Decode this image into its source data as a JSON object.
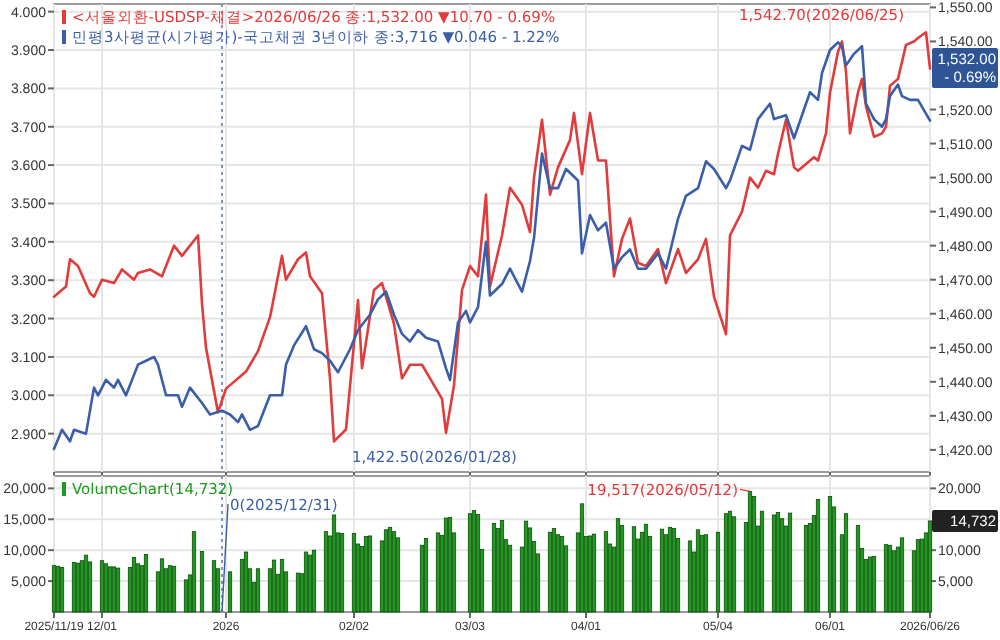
{
  "chart_data": [
    {
      "type": "line",
      "xlim": [
        "2025-11-19",
        "2026-06-26"
      ],
      "ylim": [
        2.8,
        4.02
      ],
      "y2lim": [
        1413.5,
        1551
      ],
      "xticks": [
        {
          "value": "2025-11-19",
          "label": null
        },
        {
          "value": "2025-12-01",
          "label": null
        },
        {
          "value": "2026-01-01",
          "label": null
        },
        {
          "value": "2026-02-02",
          "label": null
        },
        {
          "value": "2026-03-03",
          "label": null
        },
        {
          "value": "2026-04-01",
          "label": null
        },
        {
          "value": "2026-05-04",
          "label": null
        },
        {
          "value": "2026-06-01",
          "label": null
        },
        {
          "value": "2026-06-26",
          "label": null
        }
      ],
      "yticks": [
        {
          "value": 2.9,
          "label": "2.900"
        },
        {
          "value": 3.0,
          "label": "3.000"
        },
        {
          "value": 3.1,
          "label": "3.100"
        },
        {
          "value": 3.2,
          "label": "3.200"
        },
        {
          "value": 3.3,
          "label": "3.300"
        },
        {
          "value": 3.4,
          "label": "3.400"
        },
        {
          "value": 3.5,
          "label": "3.500"
        },
        {
          "value": 3.6,
          "label": "3.600"
        },
        {
          "value": 3.7,
          "label": "3.700"
        },
        {
          "value": 3.8,
          "label": "3.800"
        },
        {
          "value": 3.9,
          "label": "3.900"
        },
        {
          "value": 4.0,
          "label": "4.000"
        }
      ],
      "y2ticks": [
        {
          "value": 1420,
          "label": "1,420.00"
        },
        {
          "value": 1430,
          "label": "1,430.00"
        },
        {
          "value": 1440,
          "label": "1,440.00"
        },
        {
          "value": 1450,
          "label": "1,450.00"
        },
        {
          "value": 1460,
          "label": "1,460.00"
        },
        {
          "value": 1470,
          "label": "1,470.00"
        },
        {
          "value": 1480,
          "label": "1,480.00"
        },
        {
          "value": 1490,
          "label": "1,490.00"
        },
        {
          "value": 1500,
          "label": "1,500.00"
        },
        {
          "value": 1510,
          "label": "1,510.00"
        },
        {
          "value": 1520,
          "label": "1,520.00"
        },
        {
          "value": 1540,
          "label": "1,540.00"
        },
        {
          "value": 1550,
          "label": "1,550.00"
        }
      ],
      "tick_labels": "y",
      "grid": true,
      "legend": "top left",
      "ref_lines": [
        {
          "axis": "x",
          "value": "2025-12-31",
          "color": "#7d93c8",
          "line_style": "dotted"
        }
      ],
      "annotations": [
        "1,542.70(2026/06/25)",
        "1,422.50(2026/01/28)",
        "1,532.00\n- 0.69%"
      ],
      "series": [
        {
          "name": "<서울외환-USDSP-체결>2026/06/26 종:1,532.00 ▼10.70 - 0.69%",
          "color": "#e03c3c",
          "axis": "y2",
          "x": [
            "2025-11-19",
            "2025-11-22",
            "2025-11-23",
            "2025-11-25",
            "2025-11-28",
            "2025-11-29",
            "2025-12-01",
            "2025-12-04",
            "2025-12-06",
            "2025-12-09",
            "2025-12-10",
            "2025-12-13",
            "2025-12-16",
            "2025-12-19",
            "2025-12-21",
            "2025-12-25",
            "2025-12-26",
            "2025-12-27",
            "2025-12-30",
            "2026-01-01",
            "2026-01-06",
            "2026-01-09",
            "2026-01-12",
            "2026-01-15",
            "2026-01-16",
            "2026-01-19",
            "2026-01-21",
            "2026-01-22",
            "2026-01-25",
            "2026-01-27",
            "2026-01-28",
            "2026-01-31",
            "2026-02-03",
            "2026-02-04",
            "2026-02-07",
            "2026-02-09",
            "2026-02-12",
            "2026-02-14",
            "2026-02-16",
            "2026-02-19",
            "2026-02-21",
            "2026-02-24",
            "2026-02-25",
            "2026-02-27",
            "2026-03-01",
            "2026-03-03",
            "2026-03-05",
            "2026-03-07",
            "2026-03-08",
            "2026-03-11",
            "2026-03-13",
            "2026-03-16",
            "2026-03-18",
            "2026-03-19",
            "2026-03-21",
            "2026-03-23",
            "2026-03-25",
            "2026-03-28",
            "2026-03-29",
            "2026-03-31",
            "2026-04-02",
            "2026-04-04",
            "2026-04-06",
            "2026-04-08",
            "2026-04-10",
            "2026-04-12",
            "2026-04-14",
            "2026-04-16",
            "2026-04-19",
            "2026-04-21",
            "2026-04-24",
            "2026-04-26",
            "2026-04-29",
            "2026-05-01",
            "2026-05-03",
            "2026-05-06",
            "2026-05-07",
            "2026-05-10",
            "2026-05-12",
            "2026-05-14",
            "2026-05-16",
            "2026-05-18",
            "2026-05-19",
            "2026-05-21",
            "2026-05-23",
            "2026-05-24",
            "2026-05-26",
            "2026-05-28",
            "2026-05-29",
            "2026-05-31",
            "2026-06-01",
            "2026-06-03",
            "2026-06-04",
            "2026-06-05",
            "2026-06-06",
            "2026-06-08",
            "2026-06-09",
            "2026-06-10",
            "2026-06-12",
            "2026-06-14",
            "2026-06-15",
            "2026-06-16",
            "2026-06-18",
            "2026-06-20",
            "2026-06-22",
            "2026-06-23",
            "2026-06-25",
            "2026-06-26"
          ],
          "values": [
            1465,
            1468,
            1476,
            1474,
            1466,
            1465,
            1470,
            1469,
            1473,
            1470,
            1472,
            1473,
            1471,
            1480,
            1477,
            1483,
            1463,
            1450,
            1431,
            1438,
            1443,
            1449,
            1459,
            1477,
            1470,
            1476,
            1478,
            1471,
            1466,
            1441,
            1422.5,
            1426,
            1464,
            1444,
            1467,
            1469,
            1457,
            1441,
            1445,
            1445,
            1441,
            1435,
            1425,
            1439,
            1467,
            1474,
            1471,
            1495,
            1468,
            1483,
            1497,
            1492,
            1484,
            1500,
            1517,
            1495,
            1503,
            1511,
            1519,
            1501,
            1519,
            1505,
            1505,
            1471,
            1482,
            1488,
            1475,
            1474,
            1479,
            1469,
            1479,
            1472,
            1476,
            1482,
            1465,
            1454,
            1483,
            1490,
            1500,
            1497,
            1502,
            1501,
            1507,
            1517,
            1503,
            1502,
            1504,
            1506,
            1505,
            1513,
            1525,
            1537,
            1540,
            1531,
            1513,
            1525,
            1529,
            1521,
            1512,
            1513,
            1515,
            1527,
            1529,
            1539,
            1540,
            1541,
            1542.7,
            1532
          ]
        },
        {
          "name": "민평3사평균(시가평가)-국고채권 3년이하 종:3,716 ▼0.046 - 1.22%",
          "color": "#3b5ea8",
          "x": [
            "2025-11-19",
            "2025-11-21",
            "2025-11-23",
            "2025-11-24",
            "2025-11-27",
            "2025-11-29",
            "2025-11-30",
            "2025-12-02",
            "2025-12-04",
            "2025-12-05",
            "2025-12-07",
            "2025-12-10",
            "2025-12-12",
            "2025-12-14",
            "2025-12-15",
            "2025-12-17",
            "2025-12-20",
            "2025-12-21",
            "2025-12-23",
            "2025-12-26",
            "2025-12-28",
            "2025-12-31",
            "2026-01-02",
            "2026-01-04",
            "2026-01-05",
            "2026-01-07",
            "2026-01-09",
            "2026-01-12",
            "2026-01-15",
            "2026-01-16",
            "2026-01-18",
            "2026-01-21",
            "2026-01-23",
            "2026-01-25",
            "2026-01-27",
            "2026-01-29",
            "2026-02-01",
            "2026-02-03",
            "2026-02-06",
            "2026-02-08",
            "2026-02-10",
            "2026-02-12",
            "2026-02-14",
            "2026-02-16",
            "2026-02-18",
            "2026-02-20",
            "2026-02-23",
            "2026-02-25",
            "2026-02-26",
            "2026-02-28",
            "2026-03-02",
            "2026-03-03",
            "2026-03-05",
            "2026-03-07",
            "2026-03-08",
            "2026-03-11",
            "2026-03-13",
            "2026-03-14",
            "2026-03-16",
            "2026-03-18",
            "2026-03-19",
            "2026-03-21",
            "2026-03-23",
            "2026-03-25",
            "2026-03-27",
            "2026-03-30",
            "2026-03-31",
            "2026-04-02",
            "2026-04-04",
            "2026-04-06",
            "2026-04-08",
            "2026-04-10",
            "2026-04-12",
            "2026-04-14",
            "2026-04-16",
            "2026-04-19",
            "2026-04-21",
            "2026-04-24",
            "2026-04-26",
            "2026-04-29",
            "2026-05-01",
            "2026-05-03",
            "2026-05-06",
            "2026-05-07",
            "2026-05-10",
            "2026-05-12",
            "2026-05-14",
            "2026-05-17",
            "2026-05-18",
            "2026-05-21",
            "2026-05-23",
            "2026-05-24",
            "2026-05-27",
            "2026-05-29",
            "2026-05-30",
            "2026-06-01",
            "2026-06-03",
            "2026-06-04",
            "2026-06-05",
            "2026-06-07",
            "2026-06-09",
            "2026-06-10",
            "2026-06-12",
            "2026-06-14",
            "2026-06-15",
            "2026-06-16",
            "2026-06-18",
            "2026-06-19",
            "2026-06-21",
            "2026-06-23",
            "2026-06-26"
          ],
          "values": [
            2.86,
            2.91,
            2.88,
            2.91,
            2.9,
            3.02,
            3.0,
            3.04,
            3.02,
            3.04,
            3.0,
            3.08,
            3.09,
            3.1,
            3.08,
            3.0,
            3.0,
            2.97,
            3.02,
            2.98,
            2.95,
            2.96,
            2.95,
            2.93,
            2.95,
            2.91,
            2.92,
            3.0,
            3.0,
            3.08,
            3.13,
            3.18,
            3.12,
            3.11,
            3.09,
            3.06,
            3.12,
            3.17,
            3.21,
            3.25,
            3.27,
            3.21,
            3.16,
            3.14,
            3.17,
            3.15,
            3.14,
            3.07,
            3.04,
            3.19,
            3.22,
            3.19,
            3.23,
            3.4,
            3.26,
            3.29,
            3.33,
            3.31,
            3.27,
            3.35,
            3.41,
            3.63,
            3.54,
            3.54,
            3.59,
            3.56,
            3.37,
            3.47,
            3.43,
            3.45,
            3.33,
            3.36,
            3.38,
            3.33,
            3.33,
            3.37,
            3.33,
            3.46,
            3.52,
            3.54,
            3.61,
            3.59,
            3.54,
            3.56,
            3.65,
            3.64,
            3.72,
            3.76,
            3.72,
            3.73,
            3.67,
            3.7,
            3.79,
            3.77,
            3.84,
            3.9,
            3.92,
            3.91,
            3.86,
            3.89,
            3.91,
            3.76,
            3.72,
            3.7,
            3.72,
            3.78,
            3.81,
            3.78,
            3.77,
            3.77,
            3.716
          ]
        }
      ]
    },
    {
      "type": "bar",
      "xlim": [
        "2025-11-19",
        "2026-06-26"
      ],
      "ylim": [
        0,
        22000
      ],
      "y2lim": [
        0,
        22000
      ],
      "xticks": [
        {
          "value": "2025-11-19",
          "label": "2025/11/19"
        },
        {
          "value": "2025-12-01",
          "label": "12/01"
        },
        {
          "value": "2026-01-01",
          "label": "2026"
        },
        {
          "value": "2026-02-02",
          "label": "02/02"
        },
        {
          "value": "2026-03-03",
          "label": "03/03"
        },
        {
          "value": "2026-04-01",
          "label": "04/01"
        },
        {
          "value": "2026-05-04",
          "label": "05/04"
        },
        {
          "value": "2026-06-01",
          "label": "06/01"
        },
        {
          "value": "2026-06-26",
          "label": "2026/06/26"
        }
      ],
      "yticks": [
        {
          "value": 5000,
          "label": "5,000"
        },
        {
          "value": 10000,
          "label": "10,000"
        },
        {
          "value": 15000,
          "label": "15,000"
        },
        {
          "value": 20000,
          "label": "20,000"
        }
      ],
      "y2ticks": [
        {
          "value": 5000,
          "label": "5,000"
        },
        {
          "value": 10000,
          "label": "10,000"
        },
        {
          "value": 20000,
          "label": "20,000"
        }
      ],
      "grid": true,
      "legend": "top left",
      "ref_lines": [
        {
          "axis": "x",
          "value": "2025-12-31",
          "color": "#7d93c8",
          "line_style": "dotted"
        }
      ],
      "annotations": [
        {
          "text": "19,517(2026/05/12)",
          "x": "2026-05-12",
          "y": 19517
        },
        {
          "text": "0(2025/12/31)",
          "x": "2025-12-31",
          "y": 0
        },
        {
          "text": "14,732",
          "x": "2026-06-26",
          "y": 14732
        }
      ],
      "series": [
        {
          "name": "VolumeChart(14,732)",
          "color": "#1f9a1f",
          "x": [
            "2025-11-19",
            "2025-11-20",
            "2025-11-21",
            "2025-11-24",
            "2025-11-25",
            "2025-11-26",
            "2025-11-27",
            "2025-11-28",
            "2025-12-01",
            "2025-12-02",
            "2025-12-03",
            "2025-12-04",
            "2025-12-05",
            "2025-12-08",
            "2025-12-09",
            "2025-12-10",
            "2025-12-11",
            "2025-12-12",
            "2025-12-15",
            "2025-12-16",
            "2025-12-17",
            "2025-12-18",
            "2025-12-19",
            "2025-12-22",
            "2025-12-23",
            "2025-12-24",
            "2025-12-26",
            "2025-12-29",
            "2025-12-30",
            "2025-12-31",
            "2026-01-02",
            "2026-01-05",
            "2026-01-06",
            "2026-01-07",
            "2026-01-08",
            "2026-01-09",
            "2026-01-12",
            "2026-01-13",
            "2026-01-14",
            "2026-01-15",
            "2026-01-16",
            "2026-01-19",
            "2026-01-20",
            "2026-01-21",
            "2026-01-22",
            "2026-01-23",
            "2026-01-26",
            "2026-01-27",
            "2026-01-28",
            "2026-01-29",
            "2026-01-30",
            "2026-02-02",
            "2026-02-03",
            "2026-02-04",
            "2026-02-05",
            "2026-02-06",
            "2026-02-09",
            "2026-02-10",
            "2026-02-11",
            "2026-02-12",
            "2026-02-13",
            "2026-02-19",
            "2026-02-20",
            "2026-02-23",
            "2026-02-24",
            "2026-02-25",
            "2026-02-26",
            "2026-02-27",
            "2026-03-03",
            "2026-03-04",
            "2026-03-05",
            "2026-03-06",
            "2026-03-09",
            "2026-03-10",
            "2026-03-11",
            "2026-03-12",
            "2026-03-13",
            "2026-03-16",
            "2026-03-17",
            "2026-03-18",
            "2026-03-19",
            "2026-03-20",
            "2026-03-23",
            "2026-03-24",
            "2026-03-25",
            "2026-03-26",
            "2026-03-27",
            "2026-03-30",
            "2026-03-31",
            "2026-04-01",
            "2026-04-02",
            "2026-04-03",
            "2026-04-06",
            "2026-04-07",
            "2026-04-08",
            "2026-04-09",
            "2026-04-10",
            "2026-04-13",
            "2026-04-14",
            "2026-04-15",
            "2026-04-16",
            "2026-04-17",
            "2026-04-20",
            "2026-04-21",
            "2026-04-22",
            "2026-04-23",
            "2026-04-24",
            "2026-04-27",
            "2026-04-28",
            "2026-04-29",
            "2026-04-30",
            "2026-05-01",
            "2026-05-04",
            "2026-05-06",
            "2026-05-07",
            "2026-05-08",
            "2026-05-11",
            "2026-05-12",
            "2026-05-13",
            "2026-05-14",
            "2026-05-15",
            "2026-05-18",
            "2026-05-19",
            "2026-05-20",
            "2026-05-21",
            "2026-05-22",
            "2026-05-26",
            "2026-05-27",
            "2026-05-28",
            "2026-05-29",
            "2026-06-01",
            "2026-06-02",
            "2026-06-04",
            "2026-06-05",
            "2026-06-08",
            "2026-06-09",
            "2026-06-10",
            "2026-06-11",
            "2026-06-12",
            "2026-06-15",
            "2026-06-16",
            "2026-06-17",
            "2026-06-18",
            "2026-06-19",
            "2026-06-22",
            "2026-06-23",
            "2026-06-24",
            "2026-06-25",
            "2026-06-26"
          ],
          "values": [
            7500,
            7400,
            7200,
            8000,
            7900,
            8300,
            9200,
            8100,
            8300,
            7800,
            7300,
            7300,
            7100,
            7200,
            8800,
            7800,
            7500,
            9300,
            6500,
            8600,
            7000,
            7500,
            7400,
            5200,
            6000,
            13000,
            9800,
            8300,
            7000,
            0,
            6500,
            8500,
            9700,
            7000,
            4800,
            7000,
            7000,
            8400,
            6100,
            8500,
            6500,
            6300,
            6200,
            9700,
            9200,
            10000,
            13000,
            12300,
            15700,
            12800,
            12700,
            12700,
            11000,
            10600,
            12200,
            12300,
            11500,
            13300,
            13700,
            13000,
            12000,
            10800,
            11900,
            12800,
            12400,
            15200,
            15300,
            12800,
            15900,
            16400,
            15800,
            10100,
            14300,
            13500,
            14800,
            11700,
            10800,
            10500,
            14700,
            13600,
            11400,
            9400,
            12900,
            13500,
            12500,
            12200,
            10700,
            12800,
            17500,
            12200,
            12300,
            12600,
            13000,
            11000,
            10500,
            15100,
            14000,
            13800,
            11800,
            12900,
            14200,
            12200,
            13400,
            12500,
            13700,
            13500,
            11900,
            11500,
            9700,
            13300,
            12400,
            12500,
            12900,
            15900,
            16300,
            15400,
            14500,
            19517,
            18700,
            13900,
            16300,
            15700,
            16100,
            15100,
            13900,
            16000,
            14000,
            14300,
            15600,
            18200,
            18700,
            17000,
            12500,
            15900,
            14000,
            10300,
            8500,
            8900,
            9000,
            10900,
            10800,
            9900,
            10500,
            12000,
            9900,
            11700,
            11800,
            12800,
            14732
          ]
        }
      ]
    }
  ]
}
